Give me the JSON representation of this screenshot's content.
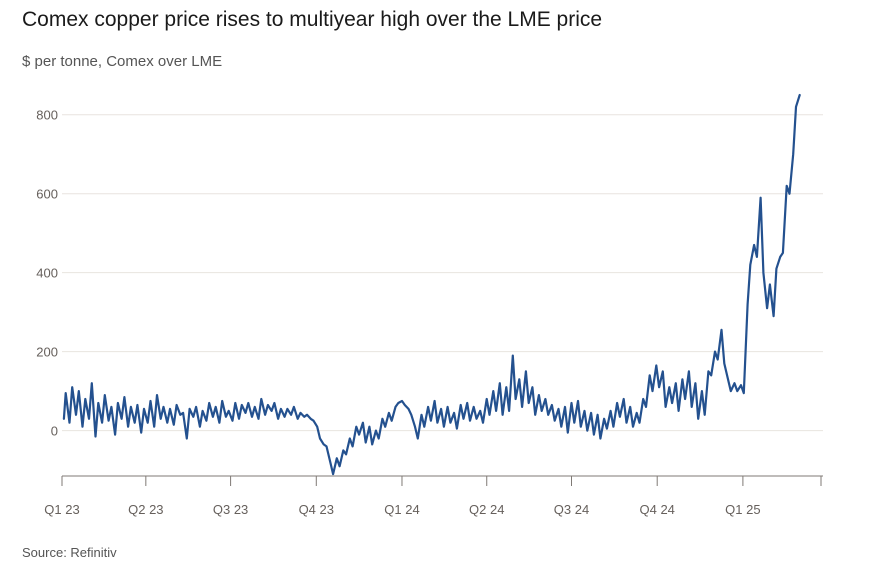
{
  "title": "Comex copper price rises to multiyear high over the LME price",
  "subtitle": "$ per tonne, Comex over LME",
  "source": "Source: Refinitiv",
  "colors": {
    "line": "#24518f",
    "grid": "#e8e4df",
    "axis": "#7f7a75",
    "text": "#66605c"
  },
  "chart_data": {
    "type": "line",
    "title": "Comex copper price rises to multiyear high over the LME price",
    "subtitle": "$ per tonne, Comex over LME",
    "xlabel": "",
    "ylabel": "$ per tonne",
    "ylim": [
      -120,
      850
    ],
    "yticks": [
      0,
      200,
      400,
      600,
      800
    ],
    "xticks": [
      "Q1 23",
      "Q2 23",
      "Q3 23",
      "Q4 23",
      "Q1 24",
      "Q2 24",
      "Q3 24",
      "Q4 24",
      "Q1 25"
    ],
    "xtick_dates": [
      "2023-01-01",
      "2023-04-01",
      "2023-07-01",
      "2023-10-01",
      "2024-01-01",
      "2024-04-01",
      "2024-07-01",
      "2024-10-01",
      "2025-01-01"
    ],
    "xlim": [
      "2023-01-01",
      "2025-03-28"
    ],
    "grid": true,
    "series": [
      {
        "points": [
          [
            "2023-01-03",
            30
          ],
          [
            "2023-01-05",
            95
          ],
          [
            "2023-01-09",
            20
          ],
          [
            "2023-01-12",
            110
          ],
          [
            "2023-01-16",
            40
          ],
          [
            "2023-01-19",
            100
          ],
          [
            "2023-01-23",
            10
          ],
          [
            "2023-01-26",
            80
          ],
          [
            "2023-01-30",
            30
          ],
          [
            "2023-02-02",
            120
          ],
          [
            "2023-02-06",
            -15
          ],
          [
            "2023-02-09",
            70
          ],
          [
            "2023-02-13",
            20
          ],
          [
            "2023-02-16",
            90
          ],
          [
            "2023-02-20",
            25
          ],
          [
            "2023-02-23",
            60
          ],
          [
            "2023-02-27",
            -10
          ],
          [
            "2023-03-02",
            70
          ],
          [
            "2023-03-06",
            30
          ],
          [
            "2023-03-09",
            85
          ],
          [
            "2023-03-13",
            10
          ],
          [
            "2023-03-16",
            60
          ],
          [
            "2023-03-20",
            20
          ],
          [
            "2023-03-23",
            65
          ],
          [
            "2023-03-27",
            -5
          ],
          [
            "2023-03-30",
            55
          ],
          [
            "2023-04-03",
            20
          ],
          [
            "2023-04-06",
            75
          ],
          [
            "2023-04-10",
            10
          ],
          [
            "2023-04-13",
            90
          ],
          [
            "2023-04-17",
            30
          ],
          [
            "2023-04-20",
            60
          ],
          [
            "2023-04-24",
            20
          ],
          [
            "2023-04-27",
            55
          ],
          [
            "2023-05-01",
            15
          ],
          [
            "2023-05-04",
            65
          ],
          [
            "2023-05-08",
            40
          ],
          [
            "2023-05-11",
            45
          ],
          [
            "2023-05-15",
            -20
          ],
          [
            "2023-05-18",
            55
          ],
          [
            "2023-05-22",
            35
          ],
          [
            "2023-05-25",
            60
          ],
          [
            "2023-05-29",
            10
          ],
          [
            "2023-06-01",
            50
          ],
          [
            "2023-06-05",
            25
          ],
          [
            "2023-06-08",
            70
          ],
          [
            "2023-06-12",
            35
          ],
          [
            "2023-06-15",
            60
          ],
          [
            "2023-06-19",
            20
          ],
          [
            "2023-06-22",
            75
          ],
          [
            "2023-06-26",
            35
          ],
          [
            "2023-06-29",
            50
          ],
          [
            "2023-07-03",
            25
          ],
          [
            "2023-07-06",
            70
          ],
          [
            "2023-07-10",
            30
          ],
          [
            "2023-07-13",
            65
          ],
          [
            "2023-07-17",
            45
          ],
          [
            "2023-07-20",
            70
          ],
          [
            "2023-07-24",
            35
          ],
          [
            "2023-07-27",
            60
          ],
          [
            "2023-07-31",
            30
          ],
          [
            "2023-08-03",
            80
          ],
          [
            "2023-08-07",
            40
          ],
          [
            "2023-08-10",
            65
          ],
          [
            "2023-08-14",
            50
          ],
          [
            "2023-08-17",
            70
          ],
          [
            "2023-08-21",
            30
          ],
          [
            "2023-08-24",
            55
          ],
          [
            "2023-08-28",
            35
          ],
          [
            "2023-08-31",
            55
          ],
          [
            "2023-09-04",
            40
          ],
          [
            "2023-09-07",
            60
          ],
          [
            "2023-09-11",
            30
          ],
          [
            "2023-09-14",
            45
          ],
          [
            "2023-09-18",
            35
          ],
          [
            "2023-09-21",
            40
          ],
          [
            "2023-09-25",
            30
          ],
          [
            "2023-09-28",
            25
          ],
          [
            "2023-10-02",
            10
          ],
          [
            "2023-10-05",
            -20
          ],
          [
            "2023-10-09",
            -35
          ],
          [
            "2023-10-12",
            -40
          ],
          [
            "2023-10-16",
            -80
          ],
          [
            "2023-10-19",
            -110
          ],
          [
            "2023-10-23",
            -70
          ],
          [
            "2023-10-26",
            -90
          ],
          [
            "2023-10-30",
            -50
          ],
          [
            "2023-11-02",
            -60
          ],
          [
            "2023-11-06",
            -20
          ],
          [
            "2023-11-09",
            -40
          ],
          [
            "2023-11-13",
            10
          ],
          [
            "2023-11-16",
            -10
          ],
          [
            "2023-11-20",
            20
          ],
          [
            "2023-11-23",
            -30
          ],
          [
            "2023-11-27",
            10
          ],
          [
            "2023-11-30",
            -35
          ],
          [
            "2023-12-04",
            0
          ],
          [
            "2023-12-07",
            -20
          ],
          [
            "2023-12-11",
            30
          ],
          [
            "2023-12-14",
            10
          ],
          [
            "2023-12-18",
            45
          ],
          [
            "2023-12-21",
            25
          ],
          [
            "2023-12-25",
            60
          ],
          [
            "2023-12-28",
            70
          ],
          [
            "2024-01-01",
            75
          ],
          [
            "2024-01-04",
            65
          ],
          [
            "2024-01-08",
            55
          ],
          [
            "2024-01-11",
            40
          ],
          [
            "2024-01-15",
            10
          ],
          [
            "2024-01-18",
            -20
          ],
          [
            "2024-01-22",
            40
          ],
          [
            "2024-01-25",
            10
          ],
          [
            "2024-01-29",
            60
          ],
          [
            "2024-02-01",
            25
          ],
          [
            "2024-02-05",
            75
          ],
          [
            "2024-02-08",
            20
          ],
          [
            "2024-02-12",
            55
          ],
          [
            "2024-02-15",
            10
          ],
          [
            "2024-02-19",
            60
          ],
          [
            "2024-02-22",
            20
          ],
          [
            "2024-02-26",
            45
          ],
          [
            "2024-02-29",
            5
          ],
          [
            "2024-03-04",
            65
          ],
          [
            "2024-03-07",
            30
          ],
          [
            "2024-03-11",
            70
          ],
          [
            "2024-03-14",
            25
          ],
          [
            "2024-03-18",
            60
          ],
          [
            "2024-03-21",
            30
          ],
          [
            "2024-03-25",
            50
          ],
          [
            "2024-03-28",
            20
          ],
          [
            "2024-04-01",
            80
          ],
          [
            "2024-04-04",
            40
          ],
          [
            "2024-04-08",
            100
          ],
          [
            "2024-04-11",
            50
          ],
          [
            "2024-04-15",
            120
          ],
          [
            "2024-04-18",
            40
          ],
          [
            "2024-04-22",
            110
          ],
          [
            "2024-04-25",
            50
          ],
          [
            "2024-04-29",
            190
          ],
          [
            "2024-05-02",
            80
          ],
          [
            "2024-05-06",
            130
          ],
          [
            "2024-05-09",
            60
          ],
          [
            "2024-05-13",
            150
          ],
          [
            "2024-05-16",
            70
          ],
          [
            "2024-05-20",
            110
          ],
          [
            "2024-05-23",
            40
          ],
          [
            "2024-05-27",
            90
          ],
          [
            "2024-05-30",
            50
          ],
          [
            "2024-06-03",
            80
          ],
          [
            "2024-06-06",
            40
          ],
          [
            "2024-06-10",
            65
          ],
          [
            "2024-06-13",
            25
          ],
          [
            "2024-06-17",
            55
          ],
          [
            "2024-06-20",
            10
          ],
          [
            "2024-06-24",
            60
          ],
          [
            "2024-06-27",
            -5
          ],
          [
            "2024-07-01",
            70
          ],
          [
            "2024-07-04",
            20
          ],
          [
            "2024-07-08",
            75
          ],
          [
            "2024-07-11",
            10
          ],
          [
            "2024-07-15",
            50
          ],
          [
            "2024-07-18",
            0
          ],
          [
            "2024-07-22",
            45
          ],
          [
            "2024-07-25",
            -10
          ],
          [
            "2024-07-29",
            40
          ],
          [
            "2024-08-01",
            -20
          ],
          [
            "2024-08-05",
            30
          ],
          [
            "2024-08-08",
            5
          ],
          [
            "2024-08-12",
            50
          ],
          [
            "2024-08-15",
            10
          ],
          [
            "2024-08-19",
            70
          ],
          [
            "2024-08-22",
            35
          ],
          [
            "2024-08-26",
            80
          ],
          [
            "2024-08-29",
            20
          ],
          [
            "2024-09-02",
            60
          ],
          [
            "2024-09-05",
            10
          ],
          [
            "2024-09-09",
            45
          ],
          [
            "2024-09-12",
            20
          ],
          [
            "2024-09-16",
            80
          ],
          [
            "2024-09-19",
            60
          ],
          [
            "2024-09-23",
            140
          ],
          [
            "2024-09-26",
            100
          ],
          [
            "2024-09-30",
            165
          ],
          [
            "2024-10-03",
            110
          ],
          [
            "2024-10-07",
            150
          ],
          [
            "2024-10-10",
            60
          ],
          [
            "2024-10-14",
            110
          ],
          [
            "2024-10-17",
            70
          ],
          [
            "2024-10-21",
            120
          ],
          [
            "2024-10-24",
            50
          ],
          [
            "2024-10-28",
            130
          ],
          [
            "2024-10-31",
            80
          ],
          [
            "2024-11-04",
            150
          ],
          [
            "2024-11-07",
            60
          ],
          [
            "2024-11-11",
            120
          ],
          [
            "2024-11-14",
            30
          ],
          [
            "2024-11-18",
            100
          ],
          [
            "2024-11-21",
            40
          ],
          [
            "2024-11-25",
            150
          ],
          [
            "2024-11-28",
            140
          ],
          [
            "2024-12-02",
            200
          ],
          [
            "2024-12-05",
            180
          ],
          [
            "2024-12-09",
            255
          ],
          [
            "2024-12-12",
            170
          ],
          [
            "2024-12-16",
            130
          ],
          [
            "2024-12-19",
            100
          ],
          [
            "2024-12-23",
            120
          ],
          [
            "2024-12-26",
            100
          ],
          [
            "2024-12-30",
            115
          ],
          [
            "2025-01-02",
            95
          ],
          [
            "2025-01-06",
            320
          ],
          [
            "2025-01-09",
            420
          ],
          [
            "2025-01-13",
            470
          ],
          [
            "2025-01-16",
            440
          ],
          [
            "2025-01-20",
            590
          ],
          [
            "2025-01-23",
            400
          ],
          [
            "2025-01-27",
            310
          ],
          [
            "2025-01-30",
            370
          ],
          [
            "2025-02-03",
            290
          ],
          [
            "2025-02-06",
            410
          ],
          [
            "2025-02-10",
            440
          ],
          [
            "2025-02-13",
            450
          ],
          [
            "2025-02-17",
            620
          ],
          [
            "2025-02-20",
            600
          ],
          [
            "2025-02-24",
            700
          ],
          [
            "2025-02-27",
            820
          ],
          [
            "2025-03-03",
            850
          ]
        ]
      }
    ]
  }
}
